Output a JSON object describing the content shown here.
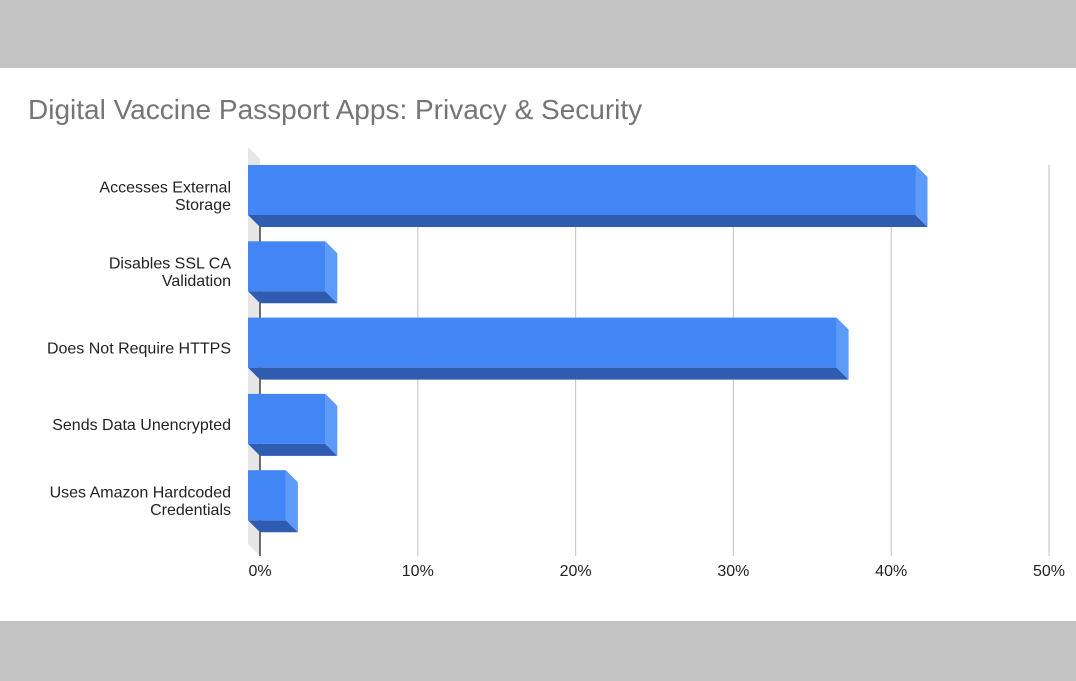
{
  "chart_data": {
    "type": "bar",
    "orientation": "horizontal",
    "style": "3d",
    "title": "Digital Vaccine Passport Apps: Privacy & Security",
    "categories": [
      [
        "Accesses External",
        "Storage"
      ],
      [
        "Disables SSL CA",
        "Validation"
      ],
      [
        "Does Not Require HTTPS"
      ],
      [
        "Sends Data Unencrypted"
      ],
      [
        "Uses Amazon Hardcoded",
        "Credentials"
      ]
    ],
    "series": [
      {
        "values": [
          42.3,
          4.9,
          37.3,
          4.9,
          2.4
        ]
      }
    ],
    "xlim": [
      0,
      50
    ],
    "xticks": [
      0,
      10,
      20,
      30,
      40,
      50
    ],
    "xtick_labels": [
      "0%",
      "10%",
      "20%",
      "30%",
      "40%",
      "50%"
    ],
    "grid": true,
    "legend": "none",
    "colors": {
      "bar_front": "#4285f4",
      "bar_bottom": "#2f5cb0",
      "bar_side": "#5c9bf7",
      "grid": "#cccccc",
      "title": "#757575",
      "background": "#ffffff",
      "frame": "#c3c3c3"
    }
  }
}
